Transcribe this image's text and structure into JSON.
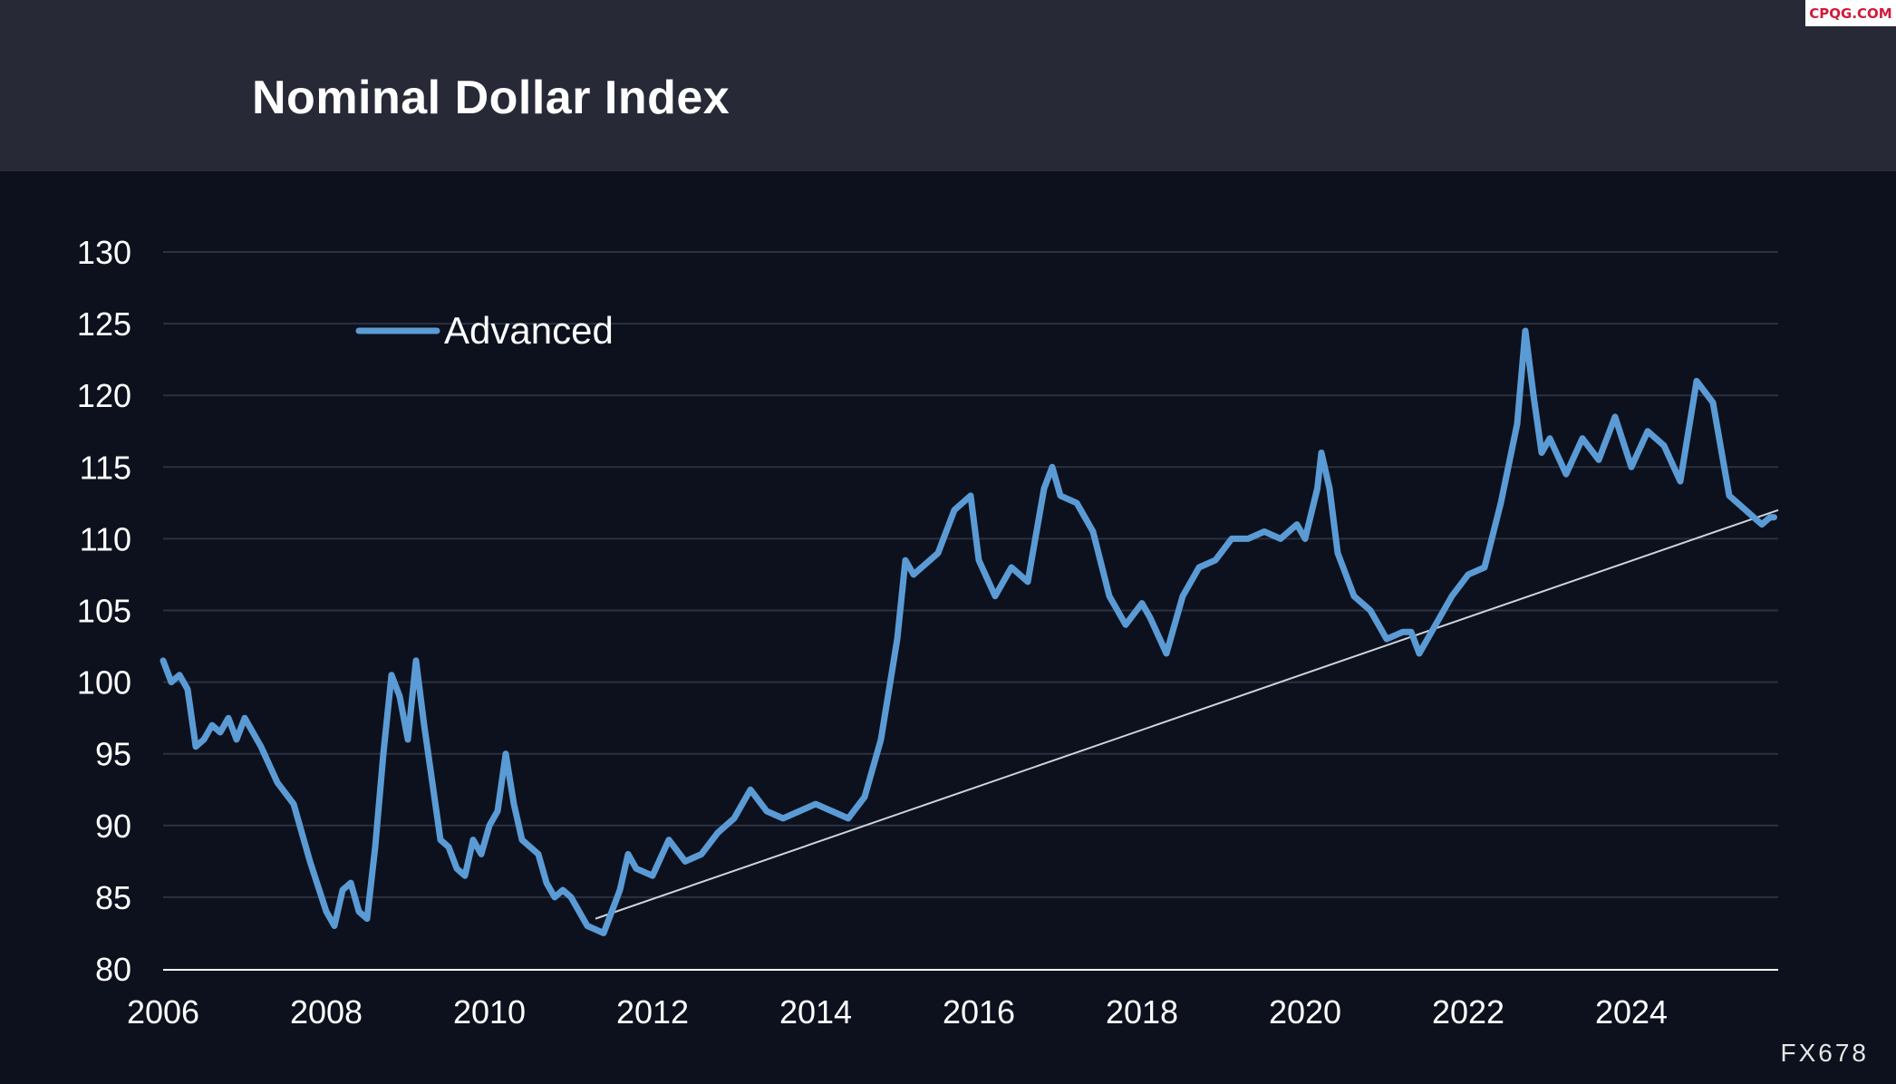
{
  "header": {
    "title": "Nominal Dollar Index"
  },
  "watermark": "CPQG.COM",
  "source": "FX678",
  "colors": {
    "series": "#5b9bd5",
    "trend": "#cfd3da",
    "grid": "#2a3140",
    "axis": "#ffffff",
    "text": "#ffffff"
  },
  "chart_data": {
    "type": "line",
    "title": "Nominal Dollar Index",
    "xlabel": "",
    "ylabel": "",
    "xlim": [
      2006,
      2025.8
    ],
    "ylim": [
      80,
      130
    ],
    "x_ticks": [
      "2006",
      "2008",
      "2010",
      "2012",
      "2014",
      "2016",
      "2018",
      "2020",
      "2022",
      "2024"
    ],
    "y_ticks": [
      "80",
      "85",
      "90",
      "95",
      "100",
      "105",
      "110",
      "115",
      "120",
      "125",
      "130"
    ],
    "grid": "horizontal",
    "legend": "top-left",
    "series": [
      {
        "name": "Advanced",
        "color": "#5b9bd5",
        "x": [
          2006.0,
          2006.1,
          2006.2,
          2006.3,
          2006.4,
          2006.5,
          2006.6,
          2006.7,
          2006.8,
          2006.9,
          2007.0,
          2007.2,
          2007.4,
          2007.6,
          2007.8,
          2008.0,
          2008.1,
          2008.2,
          2008.3,
          2008.4,
          2008.5,
          2008.6,
          2008.7,
          2008.8,
          2008.9,
          2009.0,
          2009.1,
          2009.2,
          2009.3,
          2009.4,
          2009.5,
          2009.6,
          2009.7,
          2009.8,
          2009.9,
          2010.0,
          2010.1,
          2010.2,
          2010.3,
          2010.4,
          2010.5,
          2010.6,
          2010.7,
          2010.8,
          2010.9,
          2011.0,
          2011.2,
          2011.4,
          2011.6,
          2011.7,
          2011.8,
          2012.0,
          2012.2,
          2012.4,
          2012.6,
          2012.8,
          2013.0,
          2013.2,
          2013.4,
          2013.6,
          2013.8,
          2014.0,
          2014.2,
          2014.4,
          2014.6,
          2014.8,
          2015.0,
          2015.1,
          2015.2,
          2015.3,
          2015.5,
          2015.7,
          2015.9,
          2016.0,
          2016.2,
          2016.4,
          2016.6,
          2016.8,
          2016.9,
          2017.0,
          2017.2,
          2017.4,
          2017.6,
          2017.8,
          2018.0,
          2018.1,
          2018.3,
          2018.5,
          2018.7,
          2018.9,
          2019.1,
          2019.3,
          2019.5,
          2019.7,
          2019.9,
          2020.0,
          2020.15,
          2020.2,
          2020.3,
          2020.4,
          2020.6,
          2020.8,
          2021.0,
          2021.2,
          2021.3,
          2021.4,
          2021.6,
          2021.8,
          2022.0,
          2022.2,
          2022.4,
          2022.6,
          2022.7,
          2022.8,
          2022.9,
          2023.0,
          2023.2,
          2023.4,
          2023.6,
          2023.8,
          2024.0,
          2024.2,
          2024.4,
          2024.6,
          2024.8,
          2025.0,
          2025.2,
          2025.4,
          2025.5,
          2025.6,
          2025.7,
          2025.75
        ],
        "y": [
          101.5,
          100.0,
          100.5,
          99.5,
          95.5,
          96.0,
          97.0,
          96.5,
          97.5,
          96.0,
          97.5,
          95.5,
          93.0,
          91.5,
          87.5,
          84.0,
          83.0,
          85.5,
          86.0,
          84.0,
          83.5,
          88.5,
          95.0,
          100.5,
          99.0,
          96.0,
          101.5,
          97.0,
          93.0,
          89.0,
          88.5,
          87.0,
          86.5,
          89.0,
          88.0,
          90.0,
          91.0,
          95.0,
          91.5,
          89.0,
          88.5,
          88.0,
          86.0,
          85.0,
          85.5,
          85.0,
          83.0,
          82.5,
          85.5,
          88.0,
          87.0,
          86.5,
          89.0,
          87.5,
          88.0,
          89.5,
          90.5,
          92.5,
          91.0,
          90.5,
          91.0,
          91.5,
          91.0,
          90.5,
          92.0,
          96.0,
          103.0,
          108.5,
          107.5,
          108.0,
          109.0,
          112.0,
          113.0,
          108.5,
          106.0,
          108.0,
          107.0,
          113.5,
          115.0,
          113.0,
          112.5,
          110.5,
          106.0,
          104.0,
          105.5,
          104.5,
          102.0,
          106.0,
          108.0,
          108.5,
          110.0,
          110.0,
          110.5,
          110.0,
          111.0,
          110.0,
          113.5,
          116.0,
          113.5,
          109.0,
          106.0,
          105.0,
          103.0,
          103.5,
          103.5,
          102.0,
          104.0,
          106.0,
          107.5,
          108.0,
          112.5,
          118.0,
          124.5,
          120.0,
          116.0,
          117.0,
          114.5,
          117.0,
          115.5,
          118.5,
          115.0,
          117.5,
          116.5,
          114.0,
          121.0,
          119.5,
          113.0,
          112.0,
          111.5,
          111.0,
          111.5,
          111.5
        ]
      }
    ],
    "trendline": {
      "x": [
        2011.3,
        2025.8
      ],
      "y": [
        83.5,
        112.0
      ]
    }
  }
}
